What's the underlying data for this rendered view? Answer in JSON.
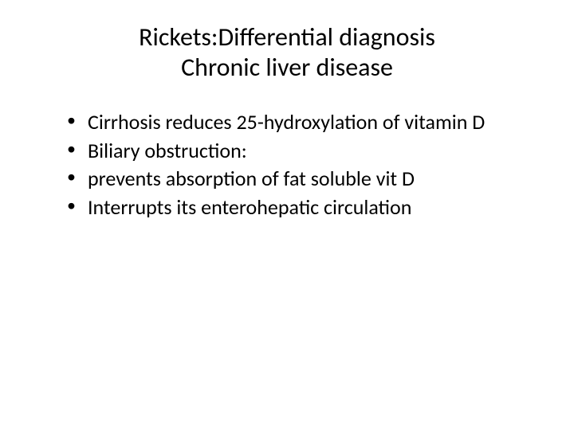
{
  "slide": {
    "title_line1": "Rickets:Differential diagnosis",
    "title_line2": "Chronic liver disease",
    "bullets": [
      "Cirrhosis reduces 25-hydroxylation of vitamin D",
      "Biliary obstruction:",
      " prevents absorption of fat soluble vit D",
      "Interrupts its enterohepatic circulation"
    ]
  },
  "styles": {
    "background_color": "#ffffff",
    "text_color": "#000000",
    "title_fontsize": 32,
    "body_fontsize": 26,
    "font_family": "Calibri"
  }
}
